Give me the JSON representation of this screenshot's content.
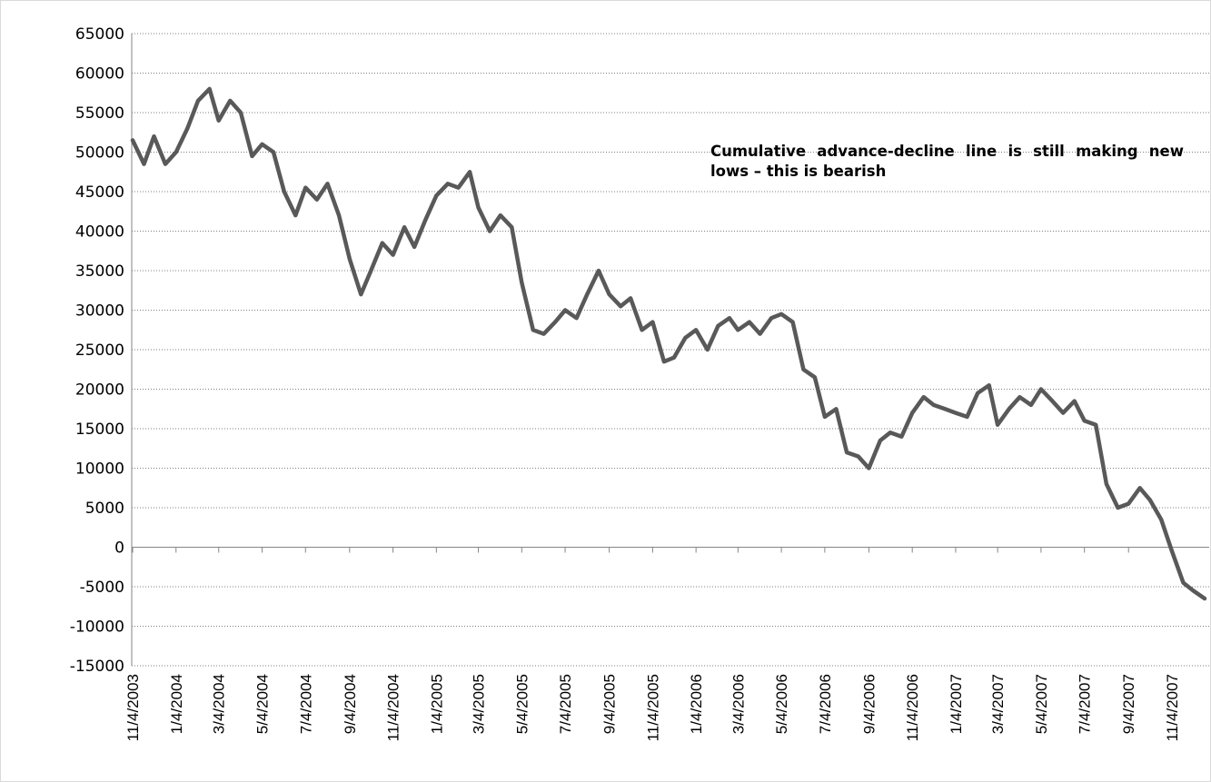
{
  "chart_data": {
    "type": "line",
    "title": "",
    "xlabel": "",
    "ylabel": "",
    "ylim": [
      -15000,
      65000
    ],
    "yticks": [
      -15000,
      -10000,
      -5000,
      0,
      5000,
      10000,
      15000,
      20000,
      25000,
      30000,
      35000,
      40000,
      45000,
      50000,
      55000,
      60000,
      65000
    ],
    "xticks": [
      "11/4/2003",
      "1/4/2004",
      "3/4/2004",
      "5/4/2004",
      "7/4/2004",
      "9/4/2004",
      "11/4/2004",
      "1/4/2005",
      "3/4/2005",
      "5/4/2005",
      "7/4/2005",
      "9/4/2005",
      "11/4/2005",
      "1/4/2006",
      "3/4/2006",
      "5/4/2006",
      "7/4/2006",
      "9/4/2006",
      "11/4/2006",
      "1/4/2007",
      "3/4/2007",
      "5/4/2007",
      "7/4/2007",
      "9/4/2007",
      "11/4/2007"
    ],
    "gridlines": "horizontal dotted",
    "line_color": "#595959",
    "series": [
      {
        "name": "",
        "x": [
          "11/4/2003",
          "11/20/2003",
          "12/4/2003",
          "12/20/2003",
          "1/4/2004",
          "1/20/2004",
          "2/4/2004",
          "2/20/2004",
          "3/4/2004",
          "3/20/2004",
          "4/4/2004",
          "4/20/2004",
          "5/4/2004",
          "5/20/2004",
          "6/4/2004",
          "6/20/2004",
          "7/4/2004",
          "7/20/2004",
          "8/4/2004",
          "8/20/2004",
          "9/4/2004",
          "9/20/2004",
          "10/4/2004",
          "10/20/2004",
          "11/4/2004",
          "11/20/2004",
          "12/4/2004",
          "12/20/2004",
          "1/4/2005",
          "1/20/2005",
          "2/4/2005",
          "2/20/2005",
          "3/4/2005",
          "3/20/2005",
          "4/4/2005",
          "4/20/2005",
          "5/4/2005",
          "5/20/2005",
          "6/4/2005",
          "6/20/2005",
          "7/4/2005",
          "7/20/2005",
          "8/4/2005",
          "8/20/2005",
          "9/4/2005",
          "9/20/2005",
          "10/4/2005",
          "10/20/2005",
          "11/4/2005",
          "11/20/2005",
          "12/4/2005",
          "12/20/2005",
          "1/4/2006",
          "1/20/2006",
          "2/4/2006",
          "2/20/2006",
          "3/4/2006",
          "3/20/2006",
          "4/4/2006",
          "4/20/2006",
          "5/4/2006",
          "5/20/2006",
          "6/4/2006",
          "6/20/2006",
          "7/4/2006",
          "7/20/2006",
          "8/4/2006",
          "8/20/2006",
          "9/4/2006",
          "9/20/2006",
          "10/4/2006",
          "10/20/2006",
          "11/4/2006",
          "11/20/2006",
          "12/4/2006",
          "12/20/2006",
          "1/4/2007",
          "1/20/2007",
          "2/4/2007",
          "2/20/2007",
          "3/4/2007",
          "3/20/2007",
          "4/4/2007",
          "4/20/2007",
          "5/4/2007",
          "5/20/2007",
          "6/4/2007",
          "6/20/2007",
          "7/4/2007",
          "7/20/2007",
          "8/4/2007",
          "8/20/2007",
          "9/4/2007",
          "9/20/2007",
          "10/4/2007",
          "10/20/2007",
          "11/4/2007",
          "11/20/2007",
          "12/4/2007",
          "12/20/2007"
        ],
        "values": [
          51500,
          48500,
          52000,
          48500,
          50000,
          53000,
          56500,
          58000,
          54000,
          56500,
          55000,
          49500,
          51000,
          50000,
          45000,
          42000,
          45500,
          44000,
          46000,
          42000,
          36500,
          32000,
          35000,
          38500,
          37000,
          40500,
          38000,
          41500,
          44500,
          46000,
          45500,
          47500,
          43000,
          40000,
          42000,
          40500,
          33500,
          27500,
          27000,
          28500,
          30000,
          29000,
          32000,
          35000,
          32000,
          30500,
          31500,
          27500,
          28500,
          23500,
          24000,
          26500,
          27500,
          25000,
          28000,
          29000,
          27500,
          28500,
          27000,
          29000,
          29500,
          28500,
          22500,
          21500,
          16500,
          17500,
          12000,
          11500,
          10000,
          13500,
          14500,
          14000,
          17000,
          19000,
          18000,
          17500,
          17000,
          16500,
          19500,
          20500,
          15500,
          17500,
          19000,
          18000,
          20000,
          18500,
          17000,
          18500,
          16000,
          15500,
          8000,
          5000,
          5500,
          7500,
          6000,
          3500,
          -500,
          -4500,
          -5500,
          -6500
        ]
      }
    ],
    "annotation": "Cumulative advance-decline line is still making new lows – this is bearish"
  }
}
